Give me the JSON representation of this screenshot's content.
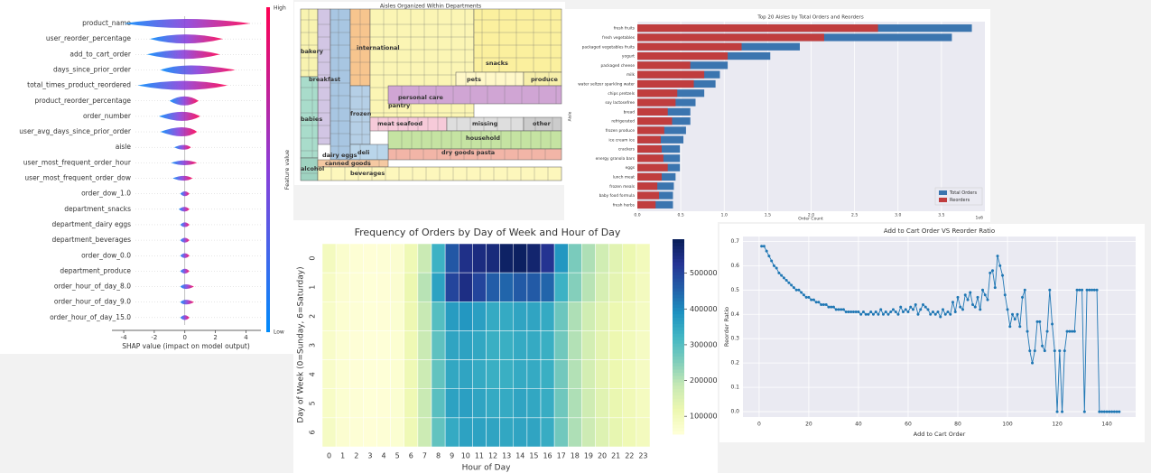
{
  "chart_data": [
    {
      "type": "shap_summary",
      "xlabel": "SHAP value (impact on model output)",
      "colorbar_label": "Feature value",
      "high_label": "High",
      "low_label": "Low",
      "categories": [
        "product_name",
        "user_reorder_percentage",
        "add_to_cart_order",
        "days_since_prior_order",
        "total_times_product_reordered",
        "product_reorder_percentage",
        "order_number",
        "user_avg_days_since_prior_order",
        "aisle",
        "user_most_frequent_order_hour",
        "user_most_frequent_order_dow",
        "order_dow_1.0",
        "department_snacks",
        "department_dairy eggs",
        "department_beverages",
        "order_dow_0.0",
        "department_produce",
        "order_hour_of_day_8.0",
        "order_hour_of_day_9.0",
        "order_hour_of_day_15.0"
      ],
      "ranges": [
        [
          -4.0,
          4.3
        ],
        [
          -2.3,
          2.5
        ],
        [
          -2.5,
          2.3
        ],
        [
          -1.6,
          3.3
        ],
        [
          -3.1,
          2.8
        ],
        [
          -1.0,
          0.9
        ],
        [
          -1.7,
          1.0
        ],
        [
          -1.6,
          0.8
        ],
        [
          -0.7,
          0.4
        ],
        [
          -0.9,
          0.8
        ],
        [
          -0.8,
          0.5
        ],
        [
          -0.3,
          0.3
        ],
        [
          -0.4,
          0.3
        ],
        [
          -0.3,
          0.3
        ],
        [
          -0.3,
          0.3
        ],
        [
          -0.3,
          0.3
        ],
        [
          -0.3,
          0.3
        ],
        [
          -0.3,
          0.6
        ],
        [
          -0.3,
          0.6
        ],
        [
          -0.3,
          0.3
        ]
      ],
      "xlim": [
        -4.8,
        5.0
      ],
      "xticks": [
        -4,
        -2,
        0,
        2,
        4
      ],
      "low_color": "#008bfb",
      "high_color": "#ff0052"
    },
    {
      "type": "treemap",
      "title": "Aisles Organized Within Departments",
      "departments": [
        {
          "name": "bakery",
          "color": "#f8f3b0"
        },
        {
          "name": "breakfast",
          "color": "#d2c6e4"
        },
        {
          "name": "babies",
          "color": "#a9dccb"
        },
        {
          "name": "alcohol",
          "color": "#9fd3c1"
        },
        {
          "name": "dairy eggs",
          "color": "#a8c6e2"
        },
        {
          "name": "international",
          "color": "#f7c58e"
        },
        {
          "name": "frozen",
          "color": "#b5cfe6"
        },
        {
          "name": "pantry",
          "color": "#fbf5b4"
        },
        {
          "name": "snacks",
          "color": "#fbf09e"
        },
        {
          "name": "pets",
          "color": "#fff8c8"
        },
        {
          "name": "produce",
          "color": "#f7efaa"
        },
        {
          "name": "personal care",
          "color": "#d0a5d4"
        },
        {
          "name": "meat seafood",
          "color": "#f6cad9"
        },
        {
          "name": "missing",
          "color": "#dedede"
        },
        {
          "name": "other",
          "color": "#cccccc"
        },
        {
          "name": "household",
          "color": "#c5e3a2"
        },
        {
          "name": "dry goods pasta",
          "color": "#f2b5a7"
        },
        {
          "name": "deli",
          "color": "#b9d5ea"
        },
        {
          "name": "canned goods",
          "color": "#f5c9a2"
        },
        {
          "name": "beverages",
          "color": "#fdf7bc"
        }
      ]
    },
    {
      "type": "barh",
      "title": "Top 20 Aisles by Total Orders and Reorders",
      "xlabel": "Order Count",
      "ylabel": "Aisle",
      "offset_label": "1e6",
      "categories": [
        "fresh fruits",
        "fresh vegetables",
        "packaged vegetables fruits",
        "yogurt",
        "packaged cheese",
        "milk",
        "water seltzer sparkling water",
        "chips pretzels",
        "soy lactosefree",
        "bread",
        "refrigerated",
        "frozen produce",
        "ice cream ice",
        "crackers",
        "energy granola bars",
        "eggs",
        "lunch meat",
        "frozen meals",
        "baby food formula",
        "fresh herbs"
      ],
      "series": [
        {
          "name": "Total Orders",
          "color": "#3b75af",
          "values": [
            3.85,
            3.62,
            1.87,
            1.53,
            1.04,
            0.95,
            0.9,
            0.77,
            0.67,
            0.61,
            0.61,
            0.56,
            0.53,
            0.49,
            0.49,
            0.49,
            0.44,
            0.42,
            0.41,
            0.41
          ]
        },
        {
          "name": "Reorders",
          "color": "#c03d3e",
          "values": [
            2.77,
            2.15,
            1.2,
            1.04,
            0.61,
            0.77,
            0.65,
            0.46,
            0.44,
            0.35,
            0.4,
            0.31,
            0.27,
            0.28,
            0.3,
            0.35,
            0.28,
            0.23,
            0.25,
            0.21
          ]
        }
      ],
      "xlim": [
        0,
        4.0
      ],
      "xticks": [
        {
          "value": 0,
          "label": "0.0"
        },
        {
          "value": 0.5,
          "label": "0.5"
        },
        {
          "value": 1,
          "label": "1.0"
        },
        {
          "value": 1.5,
          "label": "1.5"
        },
        {
          "value": 2,
          "label": "2.0"
        },
        {
          "value": 2.5,
          "label": "2.5"
        },
        {
          "value": 3,
          "label": "3.0"
        },
        {
          "value": 3.5,
          "label": "3.5"
        }
      ],
      "grid": true,
      "legend": "lower right"
    },
    {
      "type": "heatmap",
      "title": "Frequency of Orders by Day of Week and Hour of Day",
      "xlabel": "Hour of Day",
      "ylabel": "Day of Week (0=Sunday, 6=Saturday)",
      "x": [
        0,
        1,
        2,
        3,
        4,
        5,
        6,
        7,
        8,
        9,
        10,
        11,
        12,
        13,
        14,
        15,
        16,
        17,
        18,
        19,
        20,
        21,
        22,
        23
      ],
      "y": [
        0,
        1,
        2,
        3,
        4,
        5,
        6
      ],
      "values": [
        [
          95000,
          70000,
          58000,
          55000,
          56000,
          65000,
          110000,
          180000,
          330000,
          470000,
          540000,
          550000,
          555000,
          580000,
          585000,
          570000,
          530000,
          380000,
          260000,
          210000,
          170000,
          140000,
          120000,
          100000
        ],
        [
          85000,
          65000,
          56000,
          54000,
          55000,
          66000,
          120000,
          200000,
          360000,
          500000,
          545000,
          500000,
          460000,
          450000,
          465000,
          465000,
          450000,
          330000,
          250000,
          200000,
          160000,
          135000,
          115000,
          95000
        ],
        [
          80000,
          63000,
          56000,
          54000,
          55000,
          64000,
          115000,
          185000,
          300000,
          370000,
          380000,
          365000,
          345000,
          345000,
          355000,
          355000,
          345000,
          275000,
          210000,
          170000,
          140000,
          120000,
          105000,
          90000
        ],
        [
          78000,
          62000,
          55000,
          53000,
          54000,
          63000,
          112000,
          180000,
          290000,
          355000,
          360000,
          350000,
          335000,
          335000,
          345000,
          345000,
          335000,
          270000,
          205000,
          165000,
          135000,
          118000,
          102000,
          88000
        ],
        [
          78000,
          62000,
          55000,
          53000,
          54000,
          63000,
          110000,
          178000,
          285000,
          350000,
          355000,
          345000,
          335000,
          335000,
          345000,
          345000,
          335000,
          268000,
          205000,
          165000,
          135000,
          118000,
          102000,
          88000
        ],
        [
          82000,
          64000,
          56000,
          54000,
          55000,
          64000,
          112000,
          182000,
          295000,
          360000,
          365000,
          355000,
          345000,
          345000,
          355000,
          350000,
          340000,
          272000,
          210000,
          172000,
          142000,
          124000,
          108000,
          93000
        ],
        [
          86000,
          66000,
          57000,
          55000,
          56000,
          64000,
          110000,
          178000,
          285000,
          345000,
          360000,
          360000,
          355000,
          350000,
          355000,
          355000,
          340000,
          270000,
          210000,
          175000,
          146000,
          128000,
          112000,
          96000
        ]
      ],
      "clim": [
        50000,
        595000
      ],
      "colorbar_ticks": [
        100000,
        200000,
        300000,
        400000,
        500000
      ],
      "colormap": [
        "#ffffd9",
        "#edf8b1",
        "#c7e9b4",
        "#7fcdbb",
        "#41b6c4",
        "#1d91c0",
        "#225ea8",
        "#253494",
        "#081d58"
      ]
    },
    {
      "type": "line",
      "title": "Add to Cart Order VS Reorder Ratio",
      "xlabel": "Add to Cart Order",
      "ylabel": "Reorder Ratio",
      "color": "#1f77b4",
      "x": [
        1,
        2,
        3,
        4,
        5,
        6,
        7,
        8,
        9,
        10,
        11,
        12,
        13,
        14,
        15,
        16,
        17,
        18,
        19,
        20,
        21,
        22,
        23,
        24,
        25,
        26,
        27,
        28,
        29,
        30,
        31,
        32,
        33,
        34,
        35,
        36,
        37,
        38,
        39,
        40,
        41,
        42,
        43,
        44,
        45,
        46,
        47,
        48,
        49,
        50,
        51,
        52,
        53,
        54,
        55,
        56,
        57,
        58,
        59,
        60,
        61,
        62,
        63,
        64,
        65,
        66,
        67,
        68,
        69,
        70,
        71,
        72,
        73,
        74,
        75,
        76,
        77,
        78,
        79,
        80,
        81,
        82,
        83,
        84,
        85,
        86,
        87,
        88,
        89,
        90,
        91,
        92,
        93,
        94,
        95,
        96,
        97,
        98,
        99,
        100,
        101,
        102,
        103,
        104,
        105,
        106,
        107,
        108,
        109,
        110,
        111,
        112,
        113,
        114,
        115,
        116,
        117,
        118,
        119,
        120,
        121,
        122,
        123,
        124,
        125,
        126,
        127,
        128,
        129,
        130,
        131,
        132,
        133,
        134,
        135,
        136,
        137,
        138,
        139,
        140,
        141,
        142,
        143,
        144,
        145
      ],
      "values": [
        0.68,
        0.68,
        0.66,
        0.64,
        0.62,
        0.6,
        0.59,
        0.57,
        0.56,
        0.55,
        0.54,
        0.53,
        0.52,
        0.51,
        0.5,
        0.5,
        0.49,
        0.48,
        0.47,
        0.47,
        0.46,
        0.46,
        0.45,
        0.45,
        0.44,
        0.44,
        0.44,
        0.43,
        0.43,
        0.43,
        0.42,
        0.42,
        0.42,
        0.42,
        0.41,
        0.41,
        0.41,
        0.41,
        0.41,
        0.41,
        0.4,
        0.41,
        0.4,
        0.4,
        0.41,
        0.4,
        0.41,
        0.4,
        0.42,
        0.4,
        0.41,
        0.4,
        0.41,
        0.42,
        0.41,
        0.4,
        0.43,
        0.41,
        0.42,
        0.41,
        0.43,
        0.42,
        0.44,
        0.4,
        0.42,
        0.44,
        0.43,
        0.42,
        0.4,
        0.41,
        0.4,
        0.41,
        0.39,
        0.42,
        0.4,
        0.41,
        0.4,
        0.45,
        0.41,
        0.47,
        0.43,
        0.42,
        0.48,
        0.46,
        0.49,
        0.44,
        0.43,
        0.47,
        0.42,
        0.5,
        0.48,
        0.46,
        0.57,
        0.58,
        0.51,
        0.64,
        0.6,
        0.56,
        0.48,
        0.42,
        0.35,
        0.4,
        0.38,
        0.4,
        0.35,
        0.47,
        0.5,
        0.33,
        0.25,
        0.2,
        0.25,
        0.37,
        0.37,
        0.27,
        0.25,
        0.33,
        0.5,
        0.36,
        0.25,
        0,
        0.25,
        0,
        0.25,
        0.33,
        0.33,
        0.33,
        0.33,
        0.5,
        0.5,
        0.5,
        0,
        0.5,
        0.5,
        0.5,
        0.5,
        0.5,
        0,
        0,
        0,
        0,
        0,
        0,
        0,
        0,
        0
      ],
      "xlim": [
        -6.5,
        151.6
      ],
      "ylim": [
        -0.022,
        0.72
      ],
      "xticks": [
        0,
        20,
        40,
        60,
        80,
        100,
        120,
        140
      ],
      "yticks": [
        {
          "value": 0,
          "label": "0.0"
        },
        {
          "value": 0.1,
          "label": "0.1"
        },
        {
          "value": 0.2,
          "label": "0.2"
        },
        {
          "value": 0.3,
          "label": "0.3"
        },
        {
          "value": 0.4,
          "label": "0.4"
        },
        {
          "value": 0.5,
          "label": "0.5"
        },
        {
          "value": 0.6,
          "label": "0.6"
        },
        {
          "value": 0.7,
          "label": "0.7"
        }
      ],
      "grid": true
    }
  ]
}
